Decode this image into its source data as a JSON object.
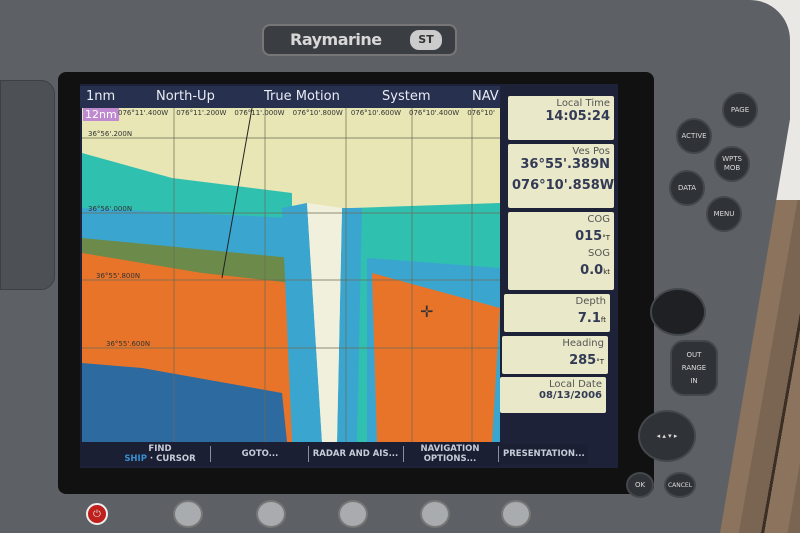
{
  "device": {
    "brand": "Raymarine",
    "logo": "ST"
  },
  "header": {
    "range": "1nm",
    "orientation": "North-Up",
    "motion": "True Motion",
    "system": "System",
    "mode": "NAV"
  },
  "map": {
    "range_label": "12nm",
    "lon_labels": [
      "076°11'.400W",
      "076°11'.200W",
      "076°11'.000W",
      "076°10'.800W",
      "076°10'.600W",
      "076°10'.400W",
      "076°10'"
    ],
    "lat_labels": [
      "36°56'.200N",
      "36°56'.000N",
      "36°55'.800N",
      "36°55'.600N"
    ],
    "colors": {
      "land": "#e7e6b4",
      "shallow": "#2fc0b0",
      "mid": "#3aa6d0",
      "deep": "#e8742a",
      "mud": "#6c8a4a"
    }
  },
  "softkeys": [
    {
      "line1": "FIND",
      "line2": "CURSOR",
      "prefix": "SHIP"
    },
    {
      "line1": "GOTO..."
    },
    {
      "line1": "RADAR AND AIS..."
    },
    {
      "line1": "NAVIGATION",
      "line2": "OPTIONS..."
    },
    {
      "line1": "PRESENTATION..."
    }
  ],
  "panel": {
    "local_time": {
      "label": "Local Time",
      "value": "14:05:24"
    },
    "ves_pos": {
      "label": "Ves Pos",
      "lat": "36°55'.389N",
      "lon": "076°10'.858W"
    },
    "cog": {
      "label": "COG",
      "value": "015",
      "unit": "°T"
    },
    "sog": {
      "label": "SOG",
      "value": "0.0",
      "unit": "kt"
    },
    "depth": {
      "label": "Depth",
      "value": "7.1",
      "unit": "ft"
    },
    "heading": {
      "label": "Heading",
      "value": "285",
      "unit": "°T"
    },
    "local_date": {
      "label": "Local Date",
      "value": "08/13/2006"
    }
  },
  "buttons": {
    "page": "PAGE",
    "active": "ACTIVE",
    "wpts": "WPTS",
    "mob": "MOB",
    "data": "DATA",
    "menu": "MENU",
    "range": "RANGE",
    "out": "OUT",
    "in": "IN",
    "ok": "OK",
    "cancel": "CANCEL"
  }
}
